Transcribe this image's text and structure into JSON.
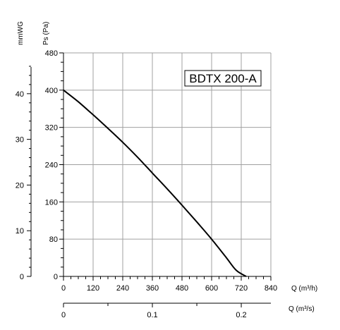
{
  "chart_data": {
    "type": "line",
    "title": "",
    "model_label": "BDTX 200-A",
    "x_axis": {
      "label": "Q (m³/h)",
      "range": [
        0,
        840
      ],
      "major_ticks": [
        0,
        120,
        240,
        360,
        480,
        600,
        720,
        840
      ],
      "tick_labels": [
        "0",
        "120",
        "240",
        "360",
        "480",
        "600",
        "720",
        "840"
      ]
    },
    "x_axis_secondary": {
      "label": "Q (m³/s)",
      "range": [
        0,
        0.2333
      ],
      "major_ticks": [
        0,
        0.1,
        0.2
      ],
      "tick_labels": [
        "0",
        "0.1",
        "0.2"
      ]
    },
    "y_axis": {
      "label": "Ps (Pa)",
      "range": [
        0,
        480
      ],
      "major_ticks": [
        0,
        80,
        160,
        240,
        320,
        400,
        480
      ],
      "tick_labels": [
        "0",
        "80",
        "160",
        "240",
        "320",
        "400",
        "480"
      ]
    },
    "y_axis_secondary": {
      "label": "mmWG",
      "range": [
        0,
        48.93
      ],
      "major_ticks": [
        0,
        10,
        20,
        30,
        40
      ],
      "tick_labels": [
        "0",
        "10",
        "20",
        "30",
        "40"
      ]
    },
    "grid": true,
    "series": [
      {
        "x": [
          0,
          60,
          120,
          180,
          240,
          300,
          360,
          420,
          480,
          540,
          600,
          660,
          700,
          740
        ],
        "y": [
          400,
          375,
          347,
          318,
          288,
          256,
          222,
          188,
          153,
          117,
          80,
          40,
          13,
          0
        ]
      }
    ]
  }
}
